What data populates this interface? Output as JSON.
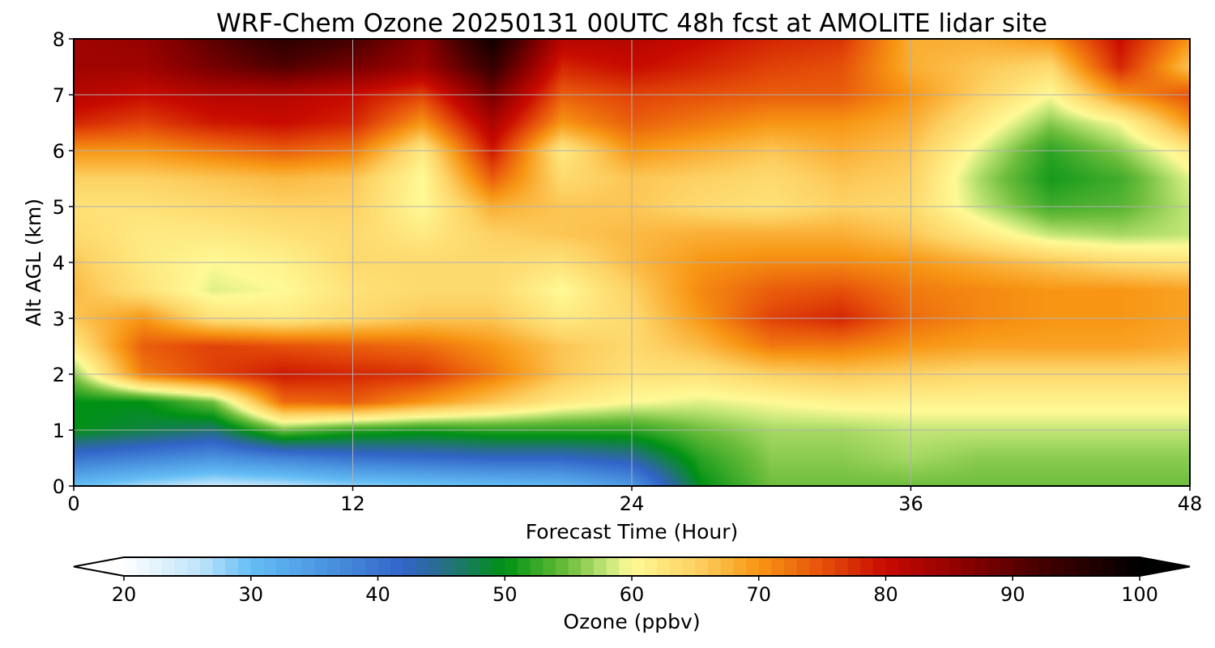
{
  "chart_data": {
    "type": "heatmap",
    "title": "WRF-Chem Ozone  20250131 00UTC 48h fcst at AMOLITE lidar site",
    "xlabel": "Forecast Time (Hour)",
    "ylabel": "Alt AGL (km)",
    "xlim": [
      0,
      48
    ],
    "ylim": [
      0,
      8
    ],
    "xticks": [
      "0",
      "12",
      "24",
      "36",
      "48"
    ],
    "yticks": [
      "0",
      "1",
      "2",
      "3",
      "4",
      "5",
      "6",
      "7",
      "8"
    ],
    "grid": true,
    "x": [
      0,
      3,
      6,
      9,
      12,
      15,
      18,
      21,
      24,
      27,
      30,
      33,
      36,
      39,
      42,
      45,
      48
    ],
    "y": [
      0,
      0.5,
      1,
      1.5,
      2,
      2.5,
      3,
      3.5,
      4,
      4.5,
      5,
      5.5,
      6,
      6.5,
      7,
      7.5,
      8
    ],
    "z": [
      [
        30,
        27,
        25,
        26,
        28,
        29,
        30,
        31,
        35,
        50,
        55,
        55,
        55,
        55,
        55,
        55,
        55
      ],
      [
        40,
        38,
        36,
        38,
        40,
        41,
        42,
        42,
        44,
        52,
        56,
        56,
        57,
        56,
        56,
        56,
        56
      ],
      [
        50,
        48,
        46,
        55,
        52,
        51,
        52,
        52,
        52,
        55,
        57,
        57,
        58,
        58,
        58,
        58,
        58
      ],
      [
        50,
        50,
        55,
        73,
        74,
        70,
        66,
        62,
        60,
        59,
        60,
        61,
        61,
        61,
        61,
        61,
        61
      ],
      [
        56,
        72,
        76,
        79,
        78,
        77,
        72,
        66,
        63,
        63,
        65,
        66,
        65,
        64,
        64,
        64,
        64
      ],
      [
        62,
        74,
        76,
        75,
        74,
        73,
        70,
        66,
        64,
        67,
        72,
        72,
        70,
        69,
        69,
        69,
        68
      ],
      [
        66,
        70,
        63,
        62,
        64,
        66,
        66,
        62,
        64,
        70,
        76,
        78,
        73,
        71,
        70,
        70,
        69
      ],
      [
        67,
        63,
        59,
        60,
        63,
        64,
        64,
        60,
        65,
        71,
        74,
        75,
        72,
        71,
        70,
        70,
        69
      ],
      [
        66,
        62,
        60,
        61,
        64,
        64,
        64,
        63,
        67,
        70,
        71,
        71,
        70,
        68,
        66,
        64,
        63
      ],
      [
        64,
        62,
        62,
        63,
        64,
        62,
        65,
        66,
        67,
        68,
        68,
        68,
        66,
        62,
        58,
        57,
        58
      ],
      [
        63,
        63,
        64,
        65,
        65,
        60,
        68,
        66,
        66,
        64,
        63,
        65,
        64,
        58,
        53,
        54,
        58
      ],
      [
        65,
        65,
        66,
        67,
        66,
        60,
        74,
        64,
        66,
        65,
        64,
        66,
        65,
        57,
        51,
        53,
        59
      ],
      [
        70,
        70,
        72,
        74,
        72,
        62,
        79,
        62,
        70,
        68,
        66,
        68,
        66,
        59,
        52,
        56,
        62
      ],
      [
        78,
        76,
        79,
        80,
        78,
        70,
        83,
        70,
        74,
        72,
        70,
        70,
        68,
        62,
        56,
        60,
        70
      ],
      [
        82,
        80,
        82,
        82,
        80,
        76,
        88,
        74,
        76,
        75,
        74,
        74,
        70,
        65,
        60,
        70,
        75
      ],
      [
        84,
        84,
        88,
        91,
        88,
        84,
        94,
        78,
        80,
        78,
        76,
        75,
        68,
        66,
        64,
        78,
        66
      ],
      [
        84,
        85,
        90,
        95,
        92,
        86,
        98,
        82,
        82,
        80,
        78,
        77,
        68,
        68,
        70,
        80,
        70
      ]
    ],
    "colorbar": {
      "label": "Ozone  (ppbv)",
      "min": 20,
      "max": 100,
      "extend": "both",
      "ticks": [
        "20",
        "30",
        "40",
        "50",
        "60",
        "70",
        "80",
        "90",
        "100"
      ]
    }
  }
}
